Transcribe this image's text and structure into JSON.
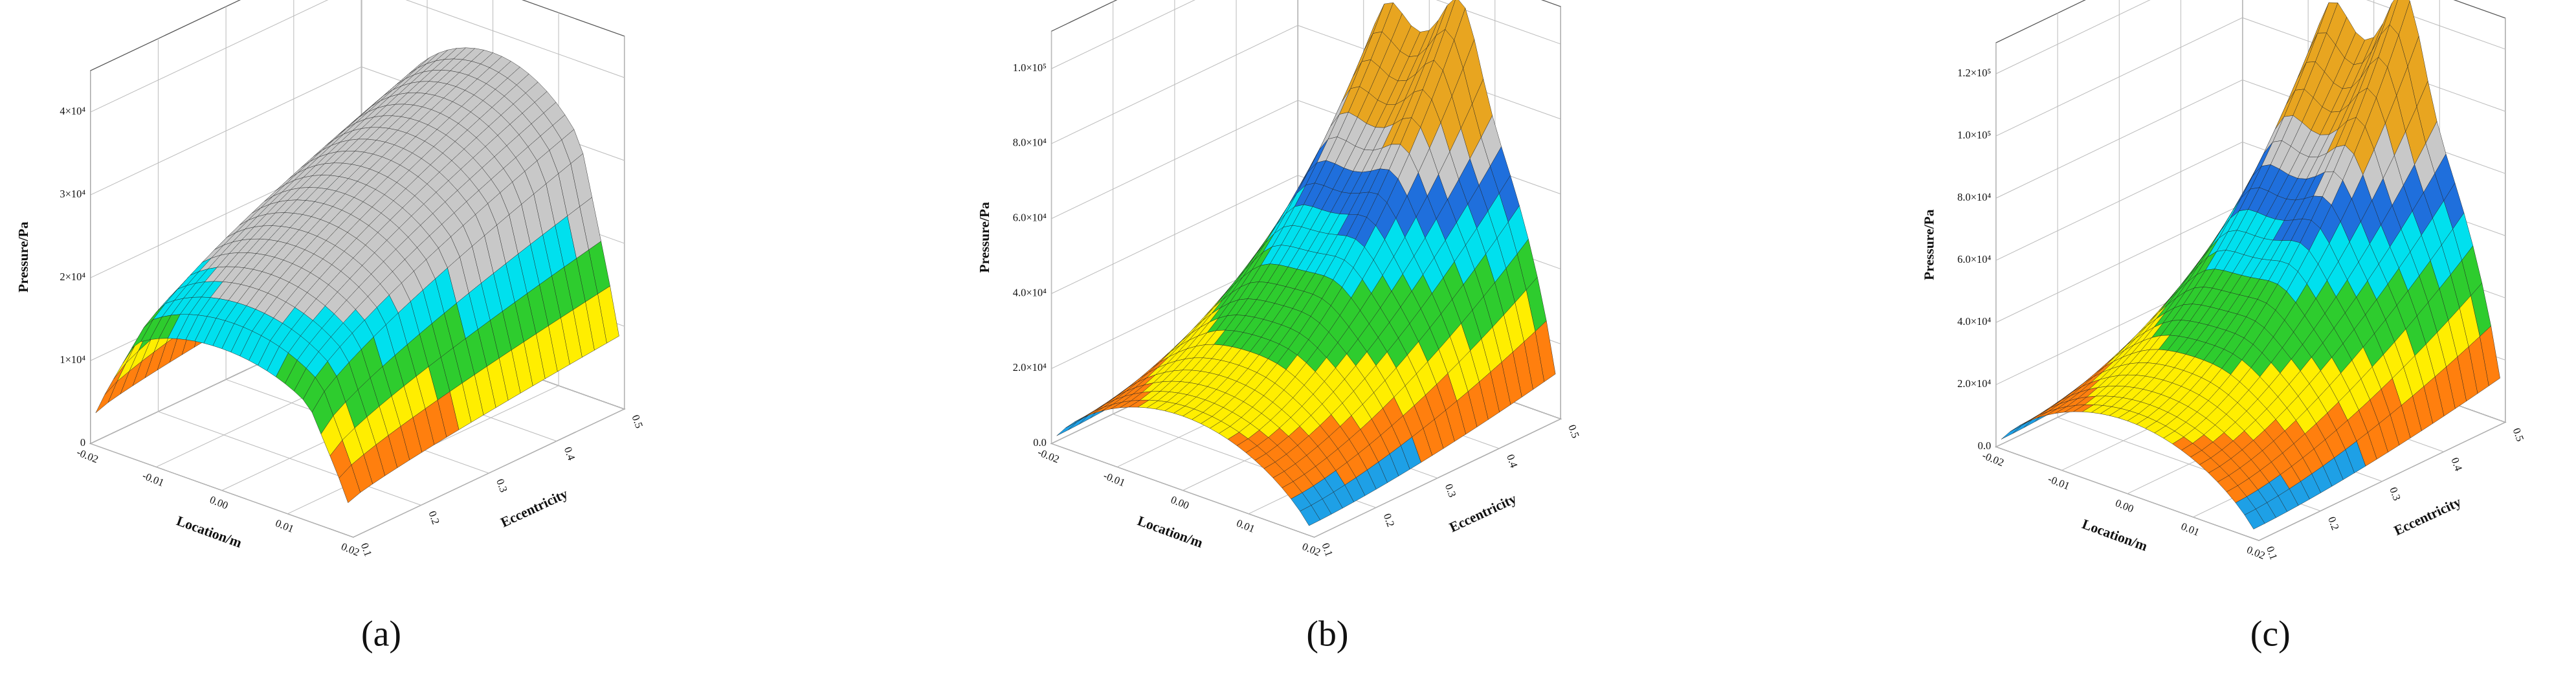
{
  "chart_data": [
    {
      "type": "surface3d",
      "panel_label": "(a)",
      "z_label": "Pressure/Pa",
      "x_label": "Location/m",
      "y_label": "Eccentricity",
      "xlim": [
        -0.02,
        0.02
      ],
      "xticks": [
        -0.02,
        -0.01,
        {
          "value": 0,
          "label": "0.00"
        },
        0.01,
        0.02
      ],
      "ylim": [
        0.1,
        0.5
      ],
      "yticks": [
        0.1,
        0.2,
        0.3,
        0.4,
        0.5
      ],
      "zlim": [
        0,
        45000
      ],
      "zticks": [
        0,
        {
          "value": 10000,
          "label": "1×10⁴"
        },
        {
          "value": 20000,
          "label": "2×10⁴"
        },
        {
          "value": 30000,
          "label": "3×10⁴"
        },
        {
          "value": 40000,
          "label": "4×10⁴"
        }
      ]
    },
    {
      "type": "surface3d",
      "panel_label": "(b)",
      "z_label": "Pressure/Pa",
      "x_label": "Location/m",
      "y_label": "Eccentricity",
      "xlim": [
        -0.02,
        0.02
      ],
      "xticks": [
        -0.02,
        -0.01,
        {
          "value": 0,
          "label": "0.00"
        },
        0.01,
        0.02
      ],
      "ylim": [
        0.1,
        0.5
      ],
      "yticks": [
        0.1,
        0.2,
        0.3,
        0.4,
        0.5
      ],
      "zlim": [
        0,
        110000
      ],
      "zticks": [
        {
          "value": 0,
          "label": "0.0"
        },
        {
          "value": 20000,
          "label": "2.0×10⁴"
        },
        {
          "value": 40000,
          "label": "4.0×10⁴"
        },
        {
          "value": 60000,
          "label": "6.0×10⁴"
        },
        {
          "value": 80000,
          "label": "8.0×10⁴"
        },
        {
          "value": 100000,
          "label": "1.0×10⁵"
        }
      ]
    },
    {
      "type": "surface3d",
      "panel_label": "(c)",
      "z_label": "Pressure/Pa",
      "x_label": "Location/m",
      "y_label": "Eccentricity",
      "xlim": [
        -0.02,
        0.02
      ],
      "xticks": [
        -0.02,
        -0.01,
        {
          "value": 0,
          "label": "0.00"
        },
        0.01,
        0.02
      ],
      "ylim": [
        0.1,
        0.5
      ],
      "yticks": [
        0.1,
        0.2,
        0.3,
        0.4,
        0.5
      ],
      "zlim": [
        0,
        130000
      ],
      "zticks": [
        {
          "value": 0,
          "label": "0.0"
        },
        {
          "value": 20000,
          "label": "2.0×10⁴"
        },
        {
          "value": 40000,
          "label": "4.0×10⁴"
        },
        {
          "value": 60000,
          "label": "6.0×10⁴"
        },
        {
          "value": 80000,
          "label": "8.0×10⁴"
        },
        {
          "value": 100000,
          "label": "1.0×10⁵"
        },
        {
          "value": 120000,
          "label": "1.2×10⁵"
        }
      ]
    }
  ]
}
